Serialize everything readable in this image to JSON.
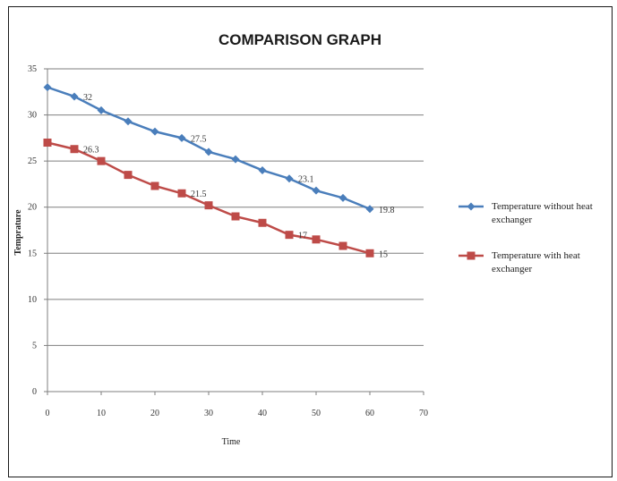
{
  "chart_data": {
    "type": "line",
    "title": "COMPARISON GRAPH",
    "xlabel": "Time",
    "ylabel": "Temprature",
    "xlim": [
      0,
      70
    ],
    "ylim": [
      0,
      35
    ],
    "x_ticks": [
      "0",
      "10",
      "20",
      "30",
      "40",
      "50",
      "60",
      "70"
    ],
    "y_ticks": [
      "0",
      "5",
      "10",
      "15",
      "20",
      "25",
      "30",
      "35"
    ],
    "grid": "horizontal",
    "legend_position": "right",
    "series": [
      {
        "name": "Temperature without heat exchanger",
        "legend_lines": [
          "Temperature without heat",
          "exchanger"
        ],
        "color": "#4a7ebb",
        "marker": "diamond",
        "x": [
          0,
          5,
          10,
          15,
          20,
          25,
          30,
          35,
          40,
          45,
          50,
          55,
          60
        ],
        "y": [
          33,
          32,
          30.5,
          29.3,
          28.2,
          27.5,
          26,
          25.2,
          24,
          23.1,
          21.8,
          21,
          19.8
        ],
        "labels": [
          {
            "x": 5,
            "y": 32,
            "text": "32"
          },
          {
            "x": 25,
            "y": 27.5,
            "text": "27.5"
          },
          {
            "x": 45,
            "y": 23.1,
            "text": "23.1"
          },
          {
            "x": 60,
            "y": 19.8,
            "text": "19.8"
          }
        ]
      },
      {
        "name": "Temperature with heat exchanger",
        "legend_lines": [
          "Temperature with heat",
          "exchanger"
        ],
        "color": "#be4b48",
        "marker": "square",
        "x": [
          0,
          5,
          10,
          15,
          20,
          25,
          30,
          35,
          40,
          45,
          50,
          55,
          60
        ],
        "y": [
          27,
          26.3,
          25,
          23.5,
          22.3,
          21.5,
          20.2,
          19,
          18.3,
          17,
          16.5,
          15.8,
          15
        ],
        "labels": [
          {
            "x": 5,
            "y": 26.3,
            "text": "26.3"
          },
          {
            "x": 25,
            "y": 21.5,
            "text": "21.5"
          },
          {
            "x": 45,
            "y": 17,
            "text": "17"
          },
          {
            "x": 60,
            "y": 15,
            "text": "15"
          }
        ]
      }
    ]
  }
}
